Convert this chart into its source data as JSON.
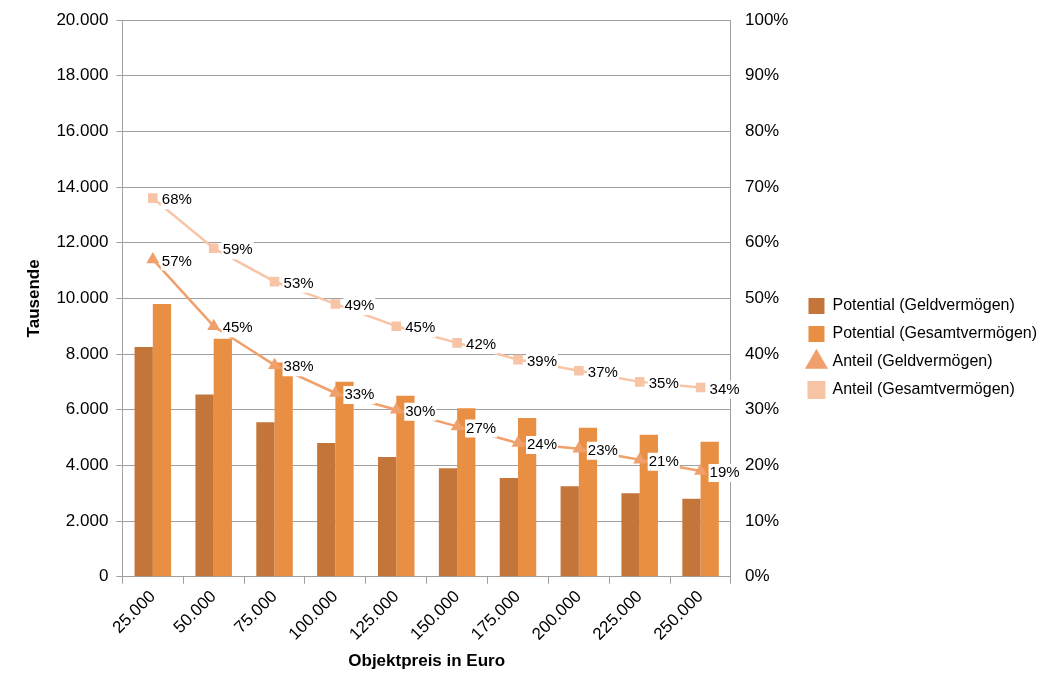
{
  "chart_data": {
    "type": "bar",
    "xlabel": "Objektpreis in Euro",
    "ylabel": "Tausende",
    "categories": [
      "25.000",
      "50.000",
      "75.000",
      "100.000",
      "125.000",
      "150.000",
      "175.000",
      "200.000",
      "225.000",
      "250.000"
    ],
    "series": [
      {
        "name": "Potential (Geldvermögen)",
        "color": "#c4763a",
        "values": [
          8250,
          6550,
          5550,
          4800,
          4300,
          3900,
          3550,
          3250,
          3000,
          2800
        ]
      },
      {
        "name": "Potential (Gesamtvermögen)",
        "color": "#e98f43",
        "values": [
          9800,
          8550,
          7700,
          7000,
          6500,
          6050,
          5700,
          5350,
          5100,
          4850
        ]
      },
      {
        "name": "Anteil (Geldvermögen)",
        "type": "line",
        "axis": "y2",
        "marker": "triangle",
        "color": "#f0a06c",
        "values": [
          57,
          45,
          38,
          33,
          30,
          27,
          24,
          23,
          21,
          19
        ],
        "value_labels": [
          "57%",
          "45%",
          "38%",
          "33%",
          "30%",
          "27%",
          "24%",
          "23%",
          "21%",
          "19%"
        ]
      },
      {
        "name": "Anteil (Gesamtvermögen)",
        "type": "line",
        "axis": "y2",
        "marker": "square",
        "color": "#f7c4a6",
        "values": [
          68,
          59,
          53,
          49,
          45,
          42,
          39,
          37,
          35,
          34
        ],
        "value_labels": [
          "68%",
          "59%",
          "53%",
          "49%",
          "45%",
          "42%",
          "39%",
          "37%",
          "35%",
          "34%"
        ]
      }
    ],
    "ylim": [
      0,
      20000
    ],
    "yticks": [
      {
        "value": 0,
        "label": "0"
      },
      {
        "value": 2000,
        "label": "2.000"
      },
      {
        "value": 4000,
        "label": "4.000"
      },
      {
        "value": 6000,
        "label": "6.000"
      },
      {
        "value": 8000,
        "label": "8.000"
      },
      {
        "value": 10000,
        "label": "10.000"
      },
      {
        "value": 12000,
        "label": "12.000"
      },
      {
        "value": 14000,
        "label": "14.000"
      },
      {
        "value": 16000,
        "label": "16.000"
      },
      {
        "value": 18000,
        "label": "18.000"
      },
      {
        "value": 20000,
        "label": "20.000"
      }
    ],
    "y2lim": [
      0,
      100
    ],
    "y2ticks": [
      {
        "value": 0,
        "label": "0%"
      },
      {
        "value": 10,
        "label": "10%"
      },
      {
        "value": 20,
        "label": "20%"
      },
      {
        "value": 30,
        "label": "30%"
      },
      {
        "value": 40,
        "label": "40%"
      },
      {
        "value": 50,
        "label": "50%"
      },
      {
        "value": 60,
        "label": "60%"
      },
      {
        "value": 70,
        "label": "70%"
      },
      {
        "value": 80,
        "label": "80%"
      },
      {
        "value": 90,
        "label": "90%"
      },
      {
        "value": 100,
        "label": "100%"
      }
    ],
    "grid": "y",
    "legend": "right"
  }
}
